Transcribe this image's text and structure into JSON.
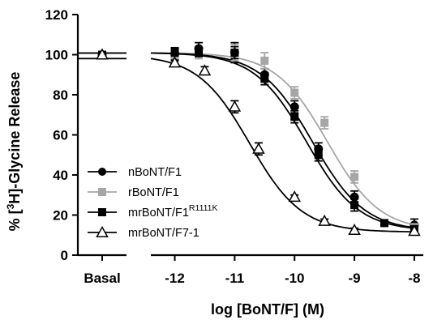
{
  "chart_data": {
    "type": "scatter",
    "title": "",
    "xlabel": "log [BoNT/F] (M)",
    "ylabel_prefix": "% [",
    "ylabel_sup": "3",
    "ylabel_suffix": "H]-Glycine Release",
    "xlim": [
      -12.4,
      -7.85
    ],
    "ylim": [
      0,
      120
    ],
    "grid": false,
    "legend_position": "bottom-left",
    "basal_label": "Basal",
    "x_ticks": [
      {
        "value": -12,
        "label": "-12"
      },
      {
        "value": -11,
        "label": "-11"
      },
      {
        "value": -10,
        "label": "-10"
      },
      {
        "value": -9,
        "label": "-9"
      },
      {
        "value": -8,
        "label": "-8"
      }
    ],
    "y_ticks": [
      {
        "value": 0,
        "label": "0"
      },
      {
        "value": 20,
        "label": "20"
      },
      {
        "value": 40,
        "label": "40"
      },
      {
        "value": 60,
        "label": "60"
      },
      {
        "value": 80,
        "label": "80"
      },
      {
        "value": 100,
        "label": "100"
      },
      {
        "value": 120,
        "label": "120"
      }
    ],
    "series": [
      {
        "name": "nBoNT/F1",
        "name_sup": "",
        "marker": "circle",
        "color": "#000000",
        "basal": {
          "y": 100,
          "err": 1.5
        },
        "points": [
          {
            "x": -12.0,
            "y": 100.5,
            "err": 3
          },
          {
            "x": -11.6,
            "y": 103,
            "err": 3
          },
          {
            "x": -11.0,
            "y": 101,
            "err": 5
          },
          {
            "x": -10.5,
            "y": 90,
            "err": 3
          },
          {
            "x": -10.0,
            "y": 74,
            "err": 3
          },
          {
            "x": -9.6,
            "y": 53,
            "err": 3
          },
          {
            "x": -9.0,
            "y": 29,
            "err": 3
          },
          {
            "x": -8.0,
            "y": 15,
            "err": 3
          }
        ],
        "fit": {
          "top": 101,
          "bottom": 12,
          "log_ic50": -9.8,
          "hill": 1.0
        }
      },
      {
        "name": "rBoNT/F1",
        "name_sup": "",
        "marker": "square",
        "color": "#a6a6a6",
        "basal": {
          "y": 100,
          "err": 1.5
        },
        "points": [
          {
            "x": -12.0,
            "y": 100,
            "err": 2
          },
          {
            "x": -11.6,
            "y": 101,
            "err": 3
          },
          {
            "x": -11.0,
            "y": 101,
            "err": 4
          },
          {
            "x": -10.5,
            "y": 97,
            "err": 4
          },
          {
            "x": -10.0,
            "y": 81,
            "err": 3
          },
          {
            "x": -9.5,
            "y": 66,
            "err": 3
          },
          {
            "x": -9.0,
            "y": 39,
            "err": 3
          },
          {
            "x": -8.0,
            "y": 14,
            "err": 2
          }
        ],
        "fit": {
          "top": 101,
          "bottom": 12,
          "log_ic50": -9.45,
          "hill": 1.0
        }
      },
      {
        "name": "mrBoNT/F1",
        "name_sup": "R1111K",
        "marker": "square",
        "color": "#000000",
        "basal": {
          "y": 100,
          "err": 1.5
        },
        "points": [
          {
            "x": -12.0,
            "y": 101,
            "err": 2
          },
          {
            "x": -11.6,
            "y": 101,
            "err": 2
          },
          {
            "x": -11.0,
            "y": 101,
            "err": 3
          },
          {
            "x": -10.5,
            "y": 88,
            "err": 3
          },
          {
            "x": -10.0,
            "y": 69,
            "err": 3
          },
          {
            "x": -9.6,
            "y": 50,
            "err": 3
          },
          {
            "x": -9.0,
            "y": 25,
            "err": 3
          },
          {
            "x": -8.5,
            "y": 16,
            "err": 1
          },
          {
            "x": -8.0,
            "y": 13,
            "err": 2
          }
        ],
        "fit": {
          "top": 101,
          "bottom": 12,
          "log_ic50": -9.7,
          "hill": 1.0
        }
      },
      {
        "name": "mrBoNT/F7-1",
        "name_sup": "",
        "marker": "triangle-open",
        "color": "#000000",
        "basal": {
          "y": 100,
          "err": 1.5
        },
        "points": [
          {
            "x": -12.0,
            "y": 96,
            "err": 1
          },
          {
            "x": -11.5,
            "y": 92,
            "err": 2
          },
          {
            "x": -11.0,
            "y": 74,
            "err": 3
          },
          {
            "x": -10.6,
            "y": 53,
            "err": 3
          },
          {
            "x": -10.0,
            "y": 29,
            "err": 1
          },
          {
            "x": -9.5,
            "y": 17,
            "err": 1
          },
          {
            "x": -9.0,
            "y": 12.5,
            "err": 1
          },
          {
            "x": -8.0,
            "y": 12,
            "err": 1
          }
        ],
        "fit": {
          "top": 100,
          "bottom": 11.5,
          "log_ic50": -10.75,
          "hill": 1.0
        }
      }
    ]
  }
}
